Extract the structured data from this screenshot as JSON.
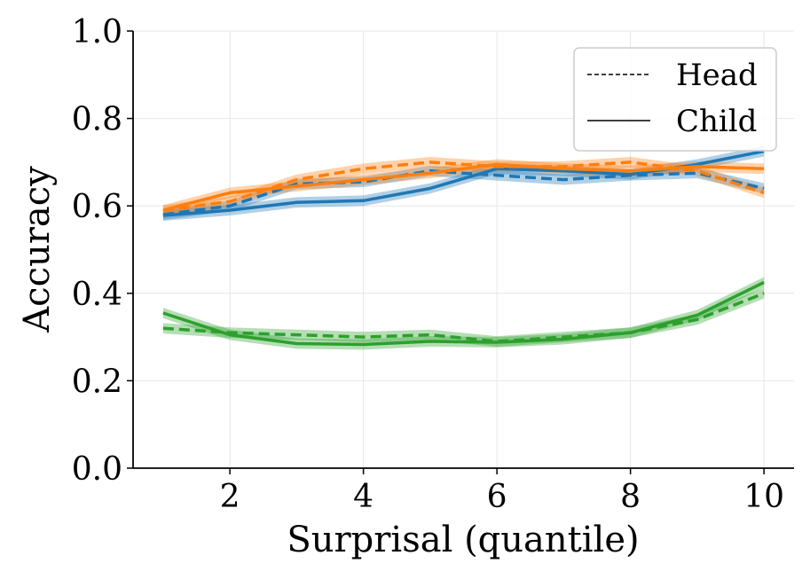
{
  "chart_data": {
    "type": "line",
    "title": "",
    "xlabel": "Surprisal (quantile)",
    "ylabel": "Accuracy",
    "xlim": [
      0.55,
      10.45
    ],
    "ylim": [
      0.0,
      1.0
    ],
    "xticks": [
      2,
      4,
      6,
      8,
      10
    ],
    "yticks": [
      0.0,
      0.2,
      0.4,
      0.6,
      0.8,
      1.0
    ],
    "ytick_labels": [
      "0.0",
      "0.2",
      "0.4",
      "0.6",
      "0.8",
      "1.0"
    ],
    "grid": true,
    "legend": {
      "position": "top-right",
      "entries": [
        {
          "label": "Head",
          "style": "dashed"
        },
        {
          "label": "Child",
          "style": "solid"
        }
      ]
    },
    "x": [
      1,
      2,
      3,
      4,
      5,
      6,
      7,
      8,
      9,
      10
    ],
    "series": [
      {
        "name": "blue-head",
        "color": "#1f77b4",
        "style": "dashed",
        "band": 0.012,
        "values": [
          0.58,
          0.6,
          0.65,
          0.655,
          0.68,
          0.67,
          0.66,
          0.67,
          0.675,
          0.64
        ]
      },
      {
        "name": "blue-child",
        "color": "#1f77b4",
        "style": "solid",
        "band": 0.012,
        "values": [
          0.578,
          0.59,
          0.608,
          0.612,
          0.64,
          0.685,
          0.68,
          0.672,
          0.695,
          0.725
        ]
      },
      {
        "name": "orange-head",
        "color": "#ff7f0e",
        "style": "dashed",
        "band": 0.012,
        "values": [
          0.59,
          0.61,
          0.66,
          0.685,
          0.7,
          0.69,
          0.69,
          0.7,
          0.68,
          0.63
        ]
      },
      {
        "name": "orange-child",
        "color": "#ff7f0e",
        "style": "solid",
        "band": 0.012,
        "values": [
          0.59,
          0.63,
          0.645,
          0.66,
          0.675,
          0.695,
          0.685,
          0.68,
          0.69,
          0.685
        ]
      },
      {
        "name": "green-head",
        "color": "#2ca02c",
        "style": "dashed",
        "band": 0.012,
        "values": [
          0.32,
          0.31,
          0.305,
          0.3,
          0.305,
          0.29,
          0.3,
          0.31,
          0.34,
          0.4
        ]
      },
      {
        "name": "green-child",
        "color": "#2ca02c",
        "style": "solid",
        "band": 0.012,
        "values": [
          0.355,
          0.305,
          0.285,
          0.283,
          0.29,
          0.288,
          0.295,
          0.31,
          0.35,
          0.425
        ]
      }
    ]
  }
}
